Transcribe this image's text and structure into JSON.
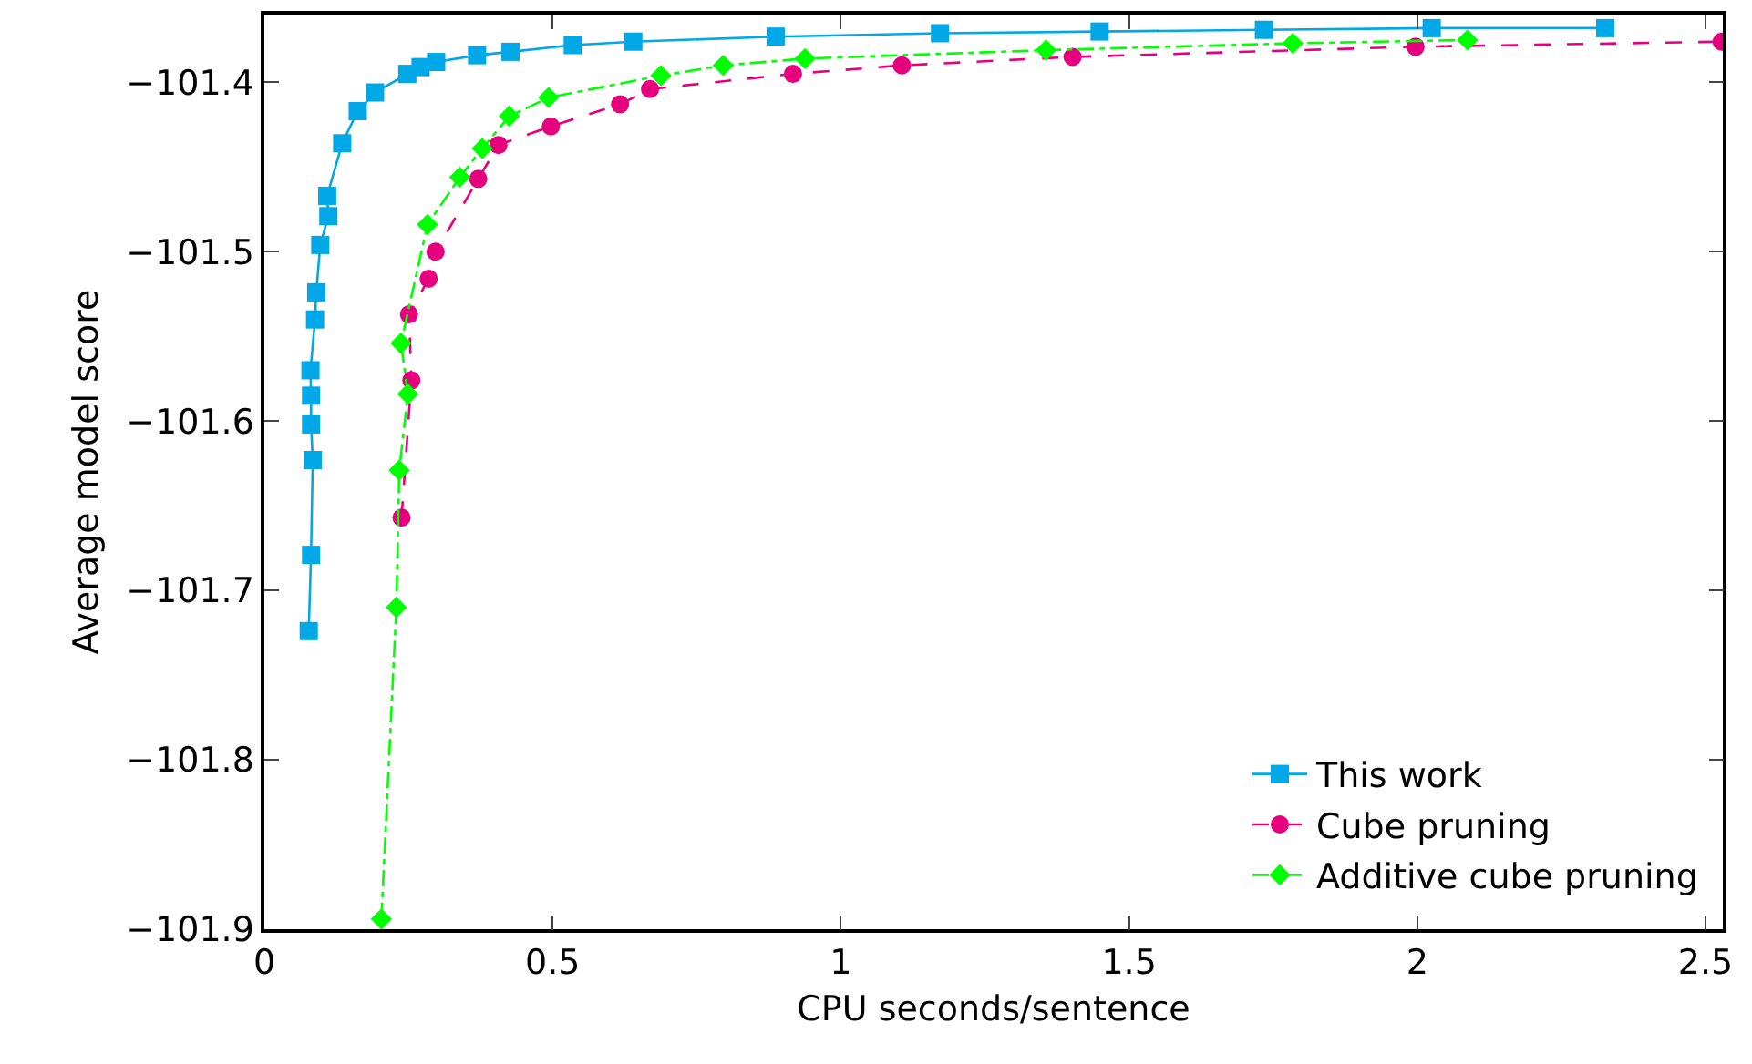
{
  "chart_data": {
    "type": "line",
    "xlabel": "CPU seconds/sentence",
    "ylabel": "Average model score",
    "xlim": [
      0,
      2.53
    ],
    "ylim": [
      -101.9,
      -101.36
    ],
    "xticks": [
      0,
      0.5,
      1,
      1.5,
      2,
      2.5
    ],
    "yticks": [
      {
        "value": -101.4,
        "label": "−101.4"
      },
      {
        "value": -101.5,
        "label": "−101.5"
      },
      {
        "value": -101.6,
        "label": "−101.6"
      },
      {
        "value": -101.7,
        "label": "−101.7"
      },
      {
        "value": -101.8,
        "label": "−101.8"
      },
      {
        "value": -101.9,
        "label": "−101.9"
      }
    ],
    "grid": false,
    "legend": "bottom right",
    "series": [
      {
        "name": "This work",
        "color": "#00a8e8",
        "marker": "square",
        "line_style": "solid",
        "x": [
          0.077,
          0.081,
          0.084,
          0.081,
          0.081,
          0.08,
          0.088,
          0.09,
          0.097,
          0.111,
          0.109,
          0.135,
          0.162,
          0.192,
          0.248,
          0.271,
          0.298,
          0.369,
          0.427,
          0.535,
          0.64,
          0.887,
          1.172,
          1.449,
          1.734,
          2.025,
          2.326
        ],
        "values": [
          -101.724,
          -101.679,
          -101.623,
          -101.602,
          -101.585,
          -101.57,
          -101.54,
          -101.524,
          -101.496,
          -101.479,
          -101.467,
          -101.436,
          -101.417,
          -101.406,
          -101.395,
          -101.391,
          -101.388,
          -101.384,
          -101.382,
          -101.378,
          -101.376,
          -101.373,
          -101.371,
          -101.37,
          -101.369,
          -101.368,
          -101.368
        ]
      },
      {
        "name": "Cube pruning",
        "color": "#e6007e",
        "marker": "circle",
        "line_style": "dashed",
        "x": [
          0.238,
          0.255,
          0.251,
          0.285,
          0.297,
          0.371,
          0.406,
          0.497,
          0.617,
          0.669,
          0.917,
          1.106,
          1.402,
          1.997,
          2.528
        ],
        "values": [
          -101.657,
          -101.576,
          -101.537,
          -101.516,
          -101.5,
          -101.457,
          -101.437,
          -101.426,
          -101.413,
          -101.404,
          -101.395,
          -101.39,
          -101.385,
          -101.379,
          -101.376
        ]
      },
      {
        "name": "Additive cube pruning",
        "color": "#00ff00",
        "marker": "diamond",
        "line_style": "dashdot",
        "x": [
          0.203,
          0.229,
          0.234,
          0.249,
          0.237,
          0.283,
          0.339,
          0.378,
          0.425,
          0.493,
          0.688,
          0.796,
          0.938,
          1.356,
          1.784,
          2.087
        ],
        "values": [
          -101.894,
          -101.71,
          -101.629,
          -101.584,
          -101.554,
          -101.484,
          -101.456,
          -101.439,
          -101.42,
          -101.409,
          -101.396,
          -101.39,
          -101.386,
          -101.381,
          -101.377,
          -101.375
        ]
      }
    ]
  }
}
